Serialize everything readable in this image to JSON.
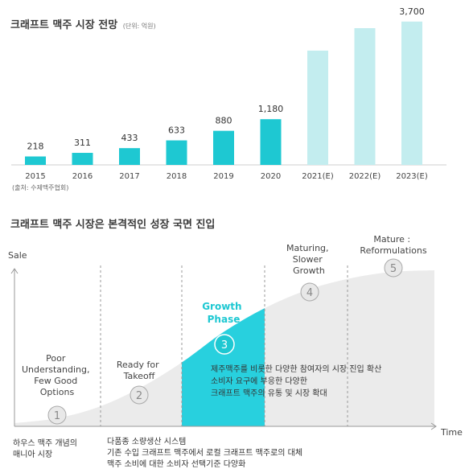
{
  "chart1": {
    "title": "크래프트 맥주 시장 전망",
    "unit": "(단위: 억원)",
    "source": "(출처: 수제맥주협회)",
    "colors": {
      "actual": "#1ec8d2",
      "forecast": "#c3edef"
    }
  },
  "chart_data": [
    {
      "type": "bar",
      "title": "크래프트 맥주 시장 전망",
      "subtitle": "(단위: 억원)",
      "categories": [
        "2015",
        "2016",
        "2017",
        "2018",
        "2019",
        "2020",
        "2021(E)",
        "2022(E)",
        "2023(E)"
      ],
      "values": [
        218,
        311,
        433,
        633,
        880,
        1180,
        2950,
        3530,
        3700
      ],
      "value_labels": [
        "218",
        "311",
        "433",
        "633",
        "880",
        "1,180",
        "",
        "",
        "3,700"
      ],
      "forecast": [
        false,
        false,
        false,
        false,
        false,
        false,
        true,
        true,
        true
      ],
      "ylim": [
        0,
        3800
      ],
      "grid": false
    },
    {
      "type": "area",
      "title": "크래프트 맥주 시장은 본격적인 성장 국면 진입",
      "ylabel": "Sale",
      "xlabel": "Time",
      "x": [
        0,
        1,
        2,
        3,
        4,
        5,
        6,
        7,
        8,
        9,
        10
      ],
      "y": [
        2,
        5,
        12,
        24,
        40,
        59,
        74,
        85,
        92,
        96,
        97
      ],
      "ylim": [
        0,
        100
      ],
      "highlight_range": [
        4,
        6
      ],
      "phases": [
        {
          "num": "1",
          "label": "Poor Understanding, Few Good Options"
        },
        {
          "num": "2",
          "label": "Ready for Takeoff"
        },
        {
          "num": "3",
          "label": "Growth Phase"
        },
        {
          "num": "4",
          "label": "Maturing, Slower Growth"
        },
        {
          "num": "5",
          "label": "Mature : Reformulations"
        }
      ]
    }
  ],
  "chart2": {
    "title": "크래프트 맥주 시장은 본격적인 성장 국면 진입",
    "y_axis_label": "Sale",
    "x_axis_label": "Time",
    "phase_lines": {
      "p1": [
        "Poor",
        "Understanding,",
        "Few Good",
        "Options"
      ],
      "p2": [
        "Ready for",
        "Takeoff"
      ],
      "p3": [
        "Growth",
        "Phase"
      ],
      "p4": [
        "Maturing,",
        "Slower",
        "Growth"
      ],
      "p5": [
        "Mature :",
        "Reformulations"
      ]
    },
    "growth_notes": [
      "제주맥주를 비롯한 다양한 참여자의 시장 진입 확산",
      "소비자 요구에 부응한 다양한",
      "크래프트 맥주의 유통 및 시장 확대"
    ],
    "bottom_left": [
      "하우스 맥주 개념의",
      "매니아 시장"
    ],
    "bottom_mid": [
      "다품종 소량생산 시스템",
      "기존 수입 크래프트 맥주에서 로컬 크래프트 맥주로의 대체",
      "맥주 소비에 대한 소비자 선택기준 다양화"
    ],
    "colors": {
      "curve_fill": "#ebebeb",
      "highlight": "#28d0de",
      "accent_text": "#1ec8d2",
      "circle_fill": "#e8e8e8"
    }
  }
}
